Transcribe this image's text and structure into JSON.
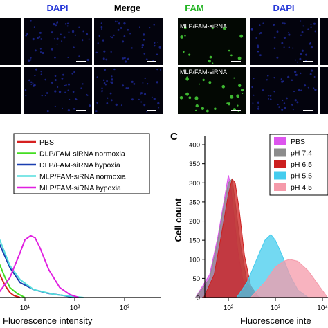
{
  "panel_a": {
    "headers": [
      {
        "text": "DAPI",
        "color": "#2a3bd9"
      },
      {
        "text": "Merge",
        "color": "#000000"
      }
    ],
    "rows": 2
  },
  "panel_b": {
    "headers": [
      {
        "text": "FAM",
        "color": "#22b422"
      },
      {
        "text": "DAPI",
        "color": "#2a3bd9"
      }
    ],
    "cell_labels": [
      "MLP/FAM-siRNA",
      "MLP/FAM-siRNA"
    ]
  },
  "chart_data": [
    {
      "type": "line",
      "title": "",
      "xlabel": "Fluorescence intensity",
      "ylabel": "",
      "x_scale": "log",
      "x_ticks": [
        "10¹",
        "10²",
        "10³"
      ],
      "legend_position": "top-right",
      "series": [
        {
          "name": "PBS",
          "color": "#d62020",
          "x": [
            1,
            1.5,
            2,
            3,
            4,
            5,
            6,
            8
          ],
          "y": [
            0.8,
            0.65,
            0.45,
            0.25,
            0.12,
            0.05,
            0.02,
            0
          ]
        },
        {
          "name": "DLP/FAM-siRNA normoxia",
          "color": "#44dd22",
          "x": [
            1,
            1.5,
            2,
            3,
            4,
            5,
            7,
            10
          ],
          "y": [
            0.82,
            0.7,
            0.55,
            0.35,
            0.2,
            0.1,
            0.04,
            0
          ]
        },
        {
          "name": "DLP/FAM-siRNA hypoxia",
          "color": "#1a3fb0",
          "x": [
            1,
            2,
            3,
            5,
            8,
            15,
            30,
            60,
            100
          ],
          "y": [
            0.9,
            0.8,
            0.55,
            0.3,
            0.15,
            0.08,
            0.04,
            0.02,
            0
          ]
        },
        {
          "name": "MLP/FAM-siRNA normoxia",
          "color": "#55dddd",
          "x": [
            1,
            2,
            3,
            5,
            8,
            15,
            40,
            100,
            150
          ],
          "y": [
            0.92,
            0.85,
            0.6,
            0.32,
            0.18,
            0.08,
            0.03,
            0.01,
            0
          ]
        },
        {
          "name": "MLP/FAM-siRNA hypoxia",
          "color": "#e020e0",
          "x": [
            3,
            5,
            8,
            10,
            13,
            16,
            20,
            30,
            50,
            80,
            120
          ],
          "y": [
            0.05,
            0.2,
            0.45,
            0.58,
            0.62,
            0.6,
            0.5,
            0.28,
            0.1,
            0.03,
            0
          ]
        }
      ]
    },
    {
      "type": "area",
      "panel_letter": "C",
      "title": "",
      "xlabel": "Fluorescence inte",
      "ylabel": "Cell count",
      "x_scale": "log",
      "x_ticks": [
        "10²",
        "10³",
        "10⁴"
      ],
      "ylim": [
        0,
        420
      ],
      "y_ticks": [
        0,
        50,
        100,
        150,
        200,
        250,
        300,
        350,
        400
      ],
      "legend_position": "top-right",
      "series": [
        {
          "name": "PBS",
          "color": "#dd55ee",
          "x": [
            20,
            40,
            60,
            80,
            100,
            110,
            130,
            160,
            200,
            300,
            500
          ],
          "y": [
            0,
            60,
            160,
            250,
            320,
            300,
            220,
            120,
            50,
            10,
            0
          ]
        },
        {
          "name": "pH 7.4",
          "color": "#8c8c8c",
          "x": [
            20,
            40,
            60,
            80,
            100,
            120,
            140,
            180,
            250,
            400
          ],
          "y": [
            0,
            50,
            150,
            240,
            300,
            310,
            250,
            140,
            40,
            0
          ]
        },
        {
          "name": "pH 6.5",
          "color": "#cc1f1f",
          "x": [
            30,
            50,
            70,
            100,
            120,
            140,
            170,
            220,
            300,
            450
          ],
          "y": [
            0,
            60,
            160,
            270,
            310,
            300,
            230,
            110,
            30,
            0
          ]
        },
        {
          "name": "pH 5.5",
          "color": "#44ccee",
          "x": [
            150,
            250,
            400,
            600,
            800,
            1000,
            1400,
            2000,
            3000,
            5000
          ],
          "y": [
            0,
            40,
            100,
            150,
            165,
            150,
            110,
            60,
            20,
            0
          ]
        },
        {
          "name": "pH 4.5",
          "color": "#f59aaa",
          "x": [
            300,
            600,
            1000,
            1500,
            2000,
            3000,
            5000,
            8000,
            12000
          ],
          "y": [
            0,
            40,
            80,
            95,
            100,
            95,
            70,
            35,
            5
          ]
        }
      ]
    }
  ]
}
